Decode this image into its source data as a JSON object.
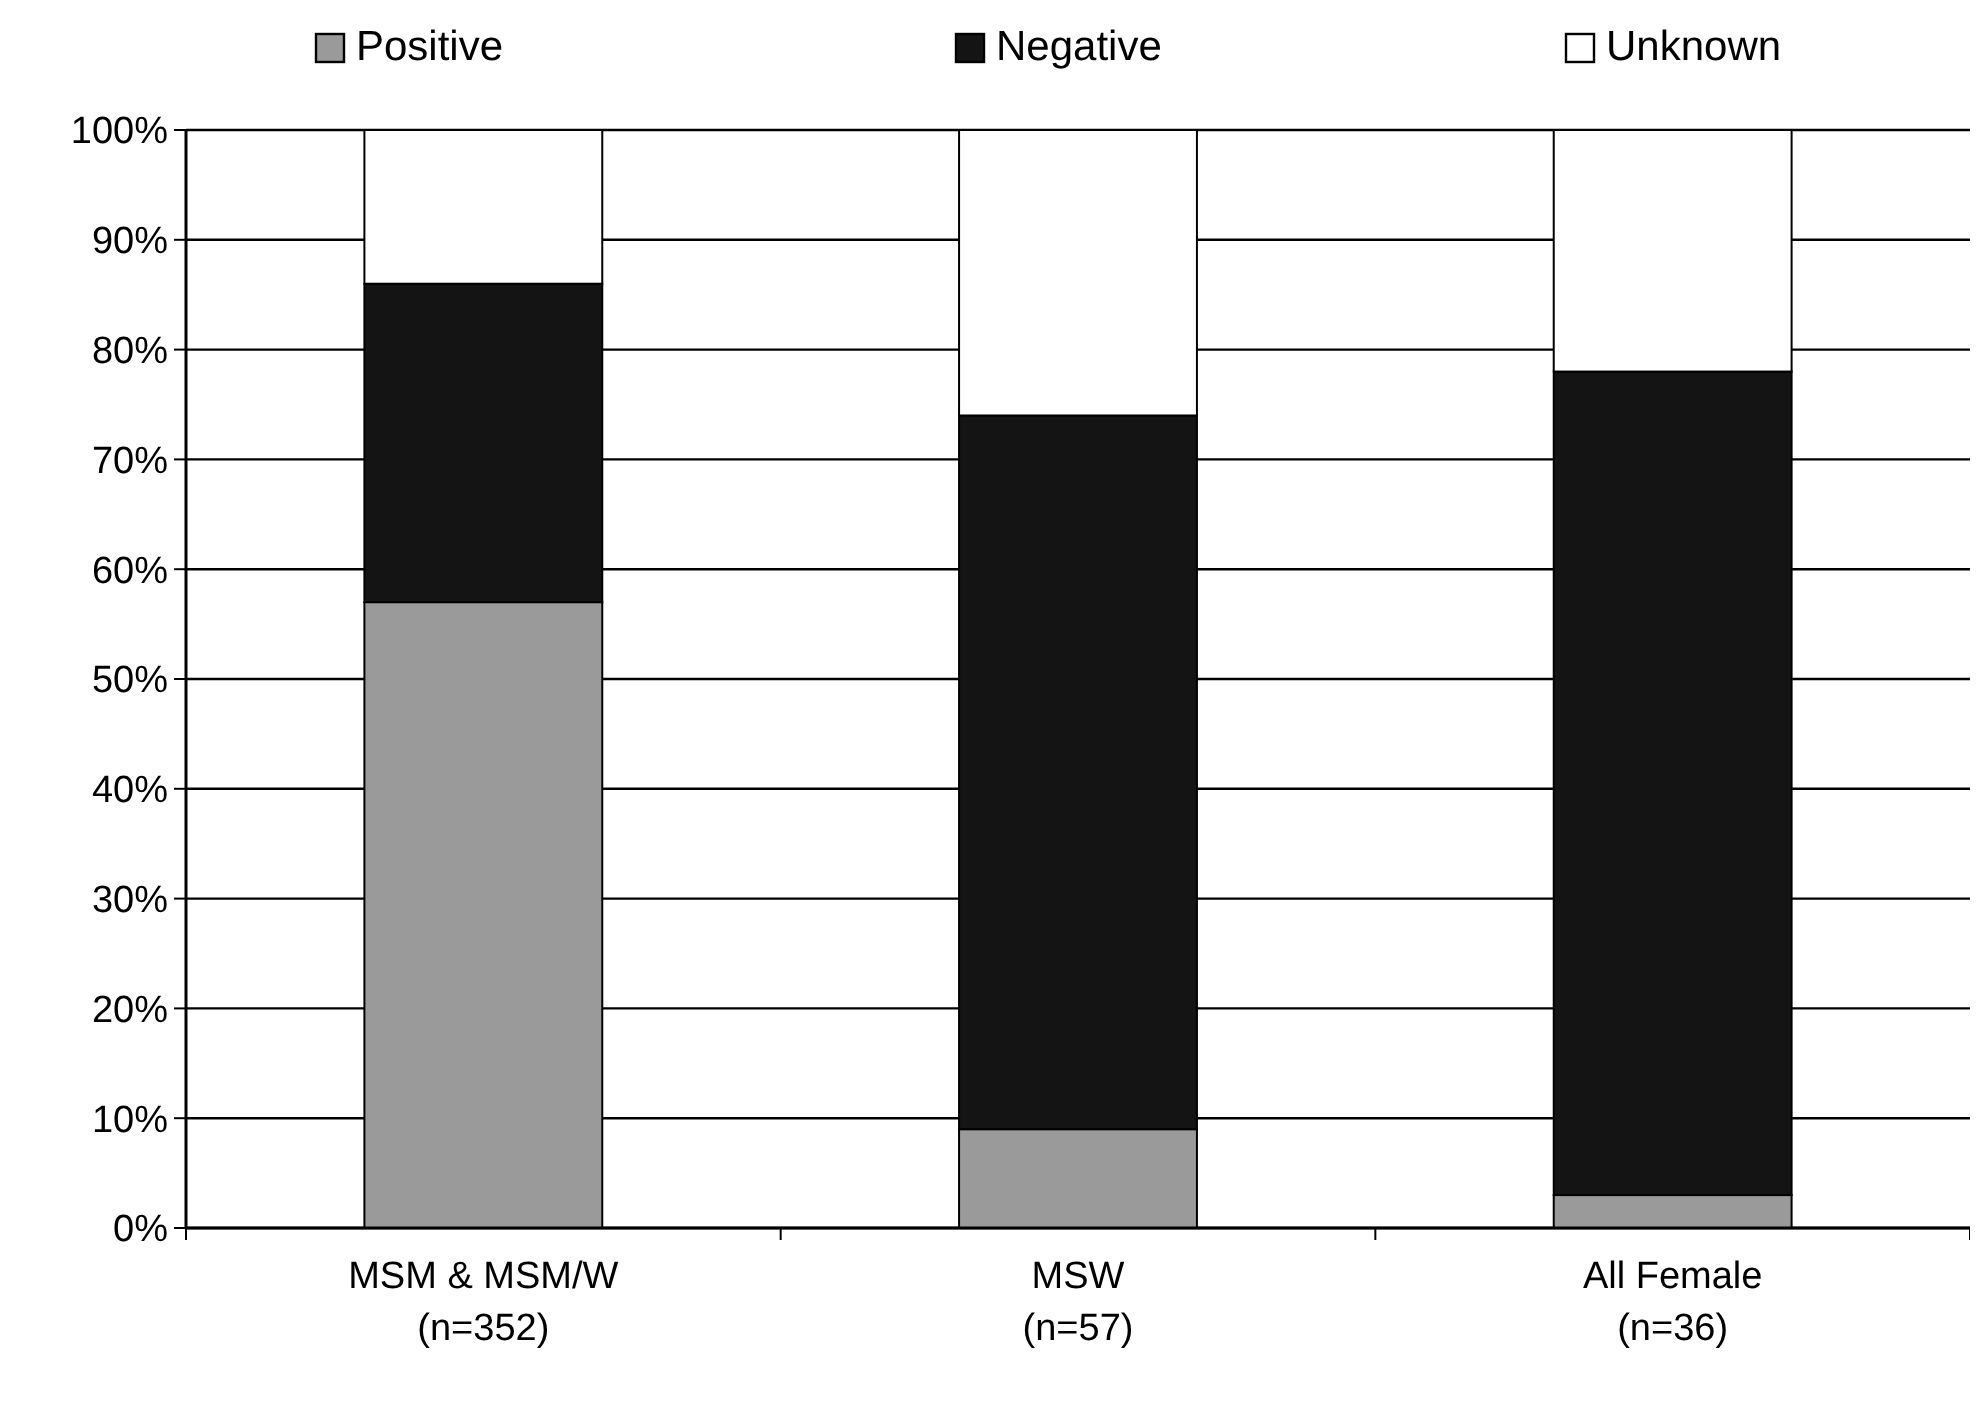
{
  "chart_data": {
    "type": "bar",
    "stacked": true,
    "categories": [
      "MSM & MSM/W\n(n=352)",
      "MSW\n(n=57)",
      "All Female\n(n=36)"
    ],
    "series": [
      {
        "name": "Positive",
        "color": "#9a9a9a",
        "values": [
          57,
          9,
          3
        ]
      },
      {
        "name": "Negative",
        "color": "#141414",
        "values": [
          29,
          65,
          75
        ]
      },
      {
        "name": "Unknown",
        "color": "#ffffff",
        "values": [
          14,
          26,
          22
        ]
      }
    ],
    "ylim": [
      0,
      100
    ],
    "yticks": [
      {
        "value": 0,
        "label": "0%"
      },
      {
        "value": 10,
        "label": "10%"
      },
      {
        "value": 20,
        "label": "20%"
      },
      {
        "value": 30,
        "label": "30%"
      },
      {
        "value": 40,
        "label": "40%"
      },
      {
        "value": 50,
        "label": "50%"
      },
      {
        "value": 60,
        "label": "60%"
      },
      {
        "value": 70,
        "label": "70%"
      },
      {
        "value": 80,
        "label": "80%"
      },
      {
        "value": 90,
        "label": "90%"
      },
      {
        "value": 100,
        "label": "100%"
      }
    ],
    "grid": "y",
    "legend": "top"
  }
}
